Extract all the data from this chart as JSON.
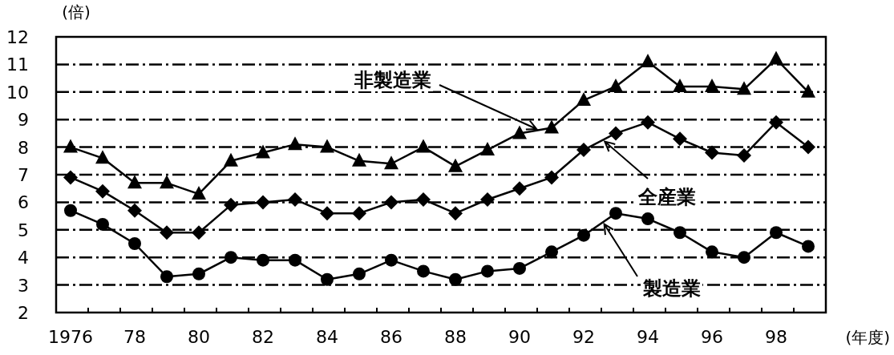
{
  "chart_data": {
    "type": "line",
    "xlabel": "(年度)",
    "ylabel": "(倍)",
    "categories": [
      "1976",
      null,
      "78",
      null,
      "80",
      null,
      "82",
      null,
      "84",
      null,
      "86",
      null,
      "88",
      null,
      "90",
      null,
      "92",
      null,
      "94",
      null,
      "96",
      null,
      "98",
      null
    ],
    "ylim": [
      2,
      12
    ],
    "yticks": [
      2,
      3,
      4,
      5,
      6,
      7,
      8,
      9,
      10,
      11,
      12
    ],
    "grid": "y",
    "line_style": "solid",
    "series": [
      {
        "name": "非製造業",
        "color": "#000000",
        "marker": "triangle",
        "values": [
          8.0,
          7.6,
          6.7,
          6.7,
          6.3,
          7.5,
          7.8,
          8.1,
          8.0,
          7.5,
          7.4,
          8.0,
          7.3,
          7.9,
          8.5,
          8.7,
          9.7,
          10.2,
          11.1,
          10.2,
          10.2,
          10.1,
          11.2,
          10.0
        ]
      },
      {
        "name": "全産業",
        "color": "#000000",
        "marker": "diamond",
        "values": [
          6.9,
          6.4,
          5.7,
          4.9,
          4.9,
          5.9,
          6.0,
          6.1,
          5.6,
          5.6,
          6.0,
          6.1,
          5.6,
          6.1,
          6.5,
          6.9,
          7.9,
          8.5,
          8.9,
          8.3,
          7.8,
          7.7,
          8.9,
          8.0
        ]
      },
      {
        "name": "製造業",
        "color": "#000000",
        "marker": "circle",
        "values": [
          5.7,
          5.2,
          4.5,
          3.3,
          3.4,
          4.0,
          3.9,
          3.9,
          3.2,
          3.4,
          3.9,
          3.5,
          3.2,
          3.5,
          3.6,
          4.2,
          4.8,
          5.6,
          5.4,
          4.9,
          4.2,
          4.0,
          4.9,
          4.4
        ]
      }
    ]
  }
}
